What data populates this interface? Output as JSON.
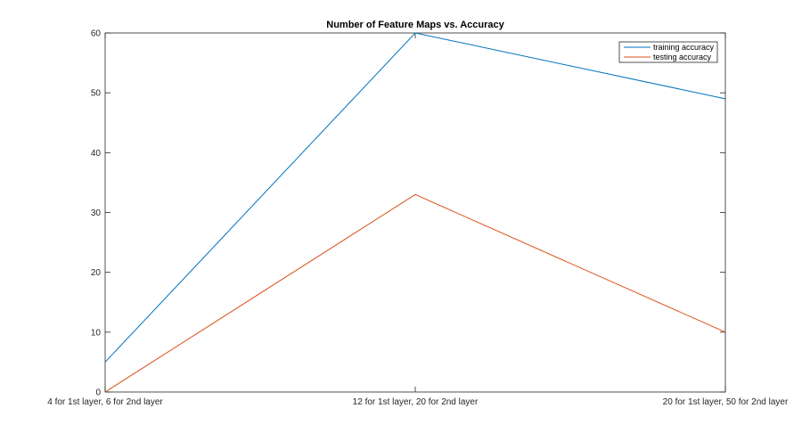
{
  "chart_data": {
    "type": "line",
    "title": "Number of Feature Maps vs. Accuracy",
    "xlabel": "",
    "ylabel": "",
    "categories": [
      "4 for 1st layer, 6 for 2nd layer",
      "12 for 1st layer, 20 for 2nd layer",
      "20 for 1st layer, 50 for 2nd layer"
    ],
    "ylim": [
      0,
      60
    ],
    "yticks": [
      0,
      10,
      20,
      30,
      40,
      50,
      60
    ],
    "grid": false,
    "legend_position": "top-right",
    "series": [
      {
        "name": "training accuracy",
        "values": [
          5,
          60,
          49
        ],
        "color": "#0072BD"
      },
      {
        "name": "testing accuracy",
        "values": [
          0,
          33,
          10
        ],
        "color": "#D95319"
      }
    ]
  }
}
